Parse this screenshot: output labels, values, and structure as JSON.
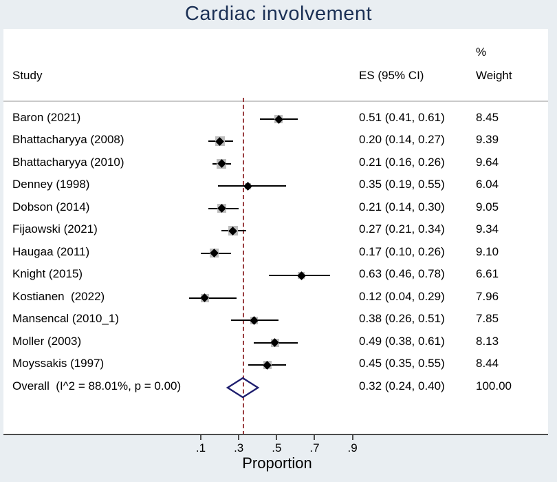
{
  "chart_data": {
    "type": "forest",
    "title": "Cardiac involvement",
    "columns": {
      "study": "Study",
      "es": "ES (95% CI)",
      "weight_pct_sign": "%",
      "weight": "Weight"
    },
    "studies": [
      {
        "label": "Baron (2021)",
        "es": 0.51,
        "lo": 0.41,
        "hi": 0.61,
        "es_text": "0.51 (0.41, 0.61)",
        "weight": 8.45,
        "weight_text": "8.45"
      },
      {
        "label": "Bhattacharyya (2008)",
        "es": 0.2,
        "lo": 0.14,
        "hi": 0.27,
        "es_text": "0.20 (0.14, 0.27)",
        "weight": 9.39,
        "weight_text": "9.39"
      },
      {
        "label": "Bhattacharyya (2010)",
        "es": 0.21,
        "lo": 0.16,
        "hi": 0.26,
        "es_text": "0.21 (0.16, 0.26)",
        "weight": 9.64,
        "weight_text": "9.64"
      },
      {
        "label": "Denney (1998)",
        "es": 0.35,
        "lo": 0.19,
        "hi": 0.55,
        "es_text": "0.35 (0.19, 0.55)",
        "weight": 6.04,
        "weight_text": "6.04"
      },
      {
        "label": "Dobson (2014)",
        "es": 0.21,
        "lo": 0.14,
        "hi": 0.3,
        "es_text": "0.21 (0.14, 0.30)",
        "weight": 9.05,
        "weight_text": "9.05"
      },
      {
        "label": "Fijaowski (2021)",
        "es": 0.27,
        "lo": 0.21,
        "hi": 0.34,
        "es_text": "0.27 (0.21, 0.34)",
        "weight": 9.34,
        "weight_text": "9.34"
      },
      {
        "label": "Haugaa (2011)",
        "es": 0.17,
        "lo": 0.1,
        "hi": 0.26,
        "es_text": "0.17 (0.10, 0.26)",
        "weight": 9.1,
        "weight_text": "9.10"
      },
      {
        "label": "Knight (2015)",
        "es": 0.63,
        "lo": 0.46,
        "hi": 0.78,
        "es_text": "0.63 (0.46, 0.78)",
        "weight": 6.61,
        "weight_text": "6.61"
      },
      {
        "label": "Kostianen  (2022)",
        "es": 0.12,
        "lo": 0.04,
        "hi": 0.29,
        "es_text": "0.12 (0.04, 0.29)",
        "weight": 7.96,
        "weight_text": "7.96"
      },
      {
        "label": "Mansencal (2010_1)",
        "es": 0.38,
        "lo": 0.26,
        "hi": 0.51,
        "es_text": "0.38 (0.26, 0.51)",
        "weight": 7.85,
        "weight_text": "7.85"
      },
      {
        "label": "Moller (2003)",
        "es": 0.49,
        "lo": 0.38,
        "hi": 0.61,
        "es_text": "0.49 (0.38, 0.61)",
        "weight": 8.13,
        "weight_text": "8.13"
      },
      {
        "label": "Moyssakis (1997)",
        "es": 0.45,
        "lo": 0.35,
        "hi": 0.55,
        "es_text": "0.45 (0.35, 0.55)",
        "weight": 8.44,
        "weight_text": "8.44"
      }
    ],
    "overall": {
      "label": "Overall  (I^2 = 88.01%, p = 0.00)",
      "es": 0.32,
      "lo": 0.24,
      "hi": 0.4,
      "es_text": "0.32 (0.24, 0.40)",
      "weight_text": "100.00"
    },
    "refline": {
      "value": 0.32,
      "style": "dashed",
      "color": "#9a3e41"
    },
    "axis": {
      "ticks": [
        0.1,
        0.3,
        0.5,
        0.7,
        0.9
      ],
      "tick_labels": [
        ".1",
        ".3",
        ".5",
        ".7",
        ".9"
      ],
      "xlabel": "Proportion",
      "xlim": [
        0.0,
        1.03
      ]
    },
    "colors": {
      "background": "#e9eef2",
      "panel": "#ffffff",
      "title": "#1b3055",
      "overall_diamond": "#1e1e6e",
      "refline": "#9a3e41",
      "weight_box": "#bdbdbd",
      "ci_line": "#000000"
    }
  }
}
